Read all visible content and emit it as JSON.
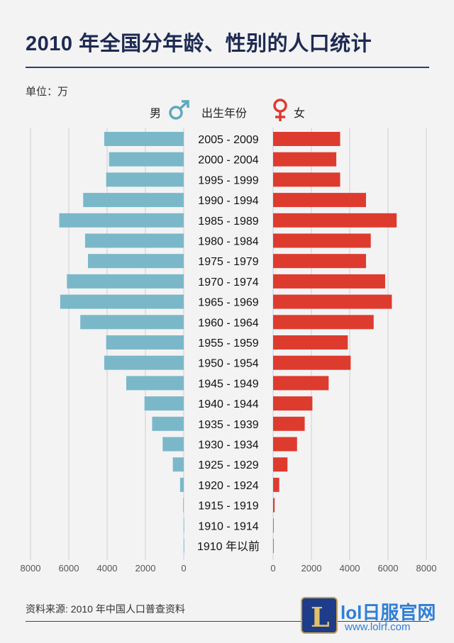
{
  "title": "2010 年全国分年龄、性别的人口统计",
  "unit_label": "单位：万",
  "legend": {
    "male": "男",
    "center": "出生年份",
    "female": "女"
  },
  "colors": {
    "male": "#7ab8c9",
    "female": "#de3b2f",
    "title": "#1e2a52"
  },
  "source": "资料来源: 2010 年中国人口普查资料",
  "watermark": {
    "name": "lol日服官网",
    "url": "www.lolrf.com",
    "logo_letter": "L"
  },
  "chart_data": {
    "type": "bar",
    "orientation": "horizontal-population-pyramid",
    "categories": [
      "2005 - 2009",
      "2000 - 2004",
      "1995 - 1999",
      "1990 - 1994",
      "1985 - 1989",
      "1980 - 1984",
      "1975 - 1979",
      "1970 - 1974",
      "1965 - 1969",
      "1960 - 1964",
      "1955 - 1959",
      "1950 - 1954",
      "1945 - 1949",
      "1940 - 1944",
      "1935 - 1939",
      "1930 - 1934",
      "1925 - 1929",
      "1920 - 1924",
      "1915 - 1919",
      "1910 - 1914",
      "1910 年以前"
    ],
    "series": [
      {
        "name": "男",
        "values": [
          4150,
          3900,
          4050,
          5250,
          6500,
          5150,
          5000,
          6100,
          6450,
          5400,
          4050,
          4150,
          3000,
          2050,
          1650,
          1100,
          570,
          190,
          30,
          5,
          2
        ]
      },
      {
        "name": "女",
        "values": [
          3500,
          3300,
          3500,
          4850,
          6450,
          5100,
          4850,
          5850,
          6200,
          5250,
          3900,
          4050,
          2900,
          2050,
          1650,
          1250,
          750,
          320,
          80,
          10,
          3
        ]
      }
    ],
    "x_ticks": [
      "8000",
      "6000",
      "4000",
      "2000",
      "0"
    ],
    "xlim": [
      0,
      8000
    ],
    "grid": true
  }
}
